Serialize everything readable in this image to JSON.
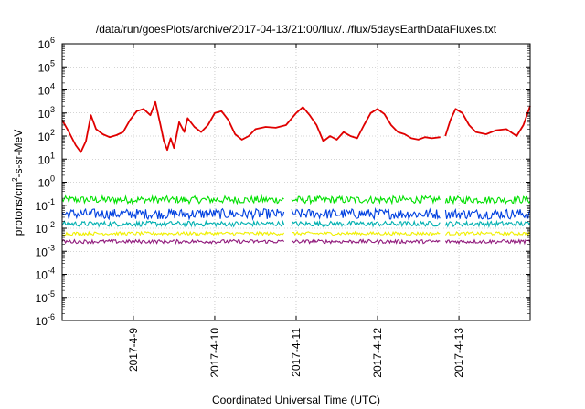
{
  "chart_data": {
    "type": "line",
    "title": "/data/run/goesPlots/archive/2017-04-13/21:00/flux/../flux/5daysEarthDataFluxes.txt",
    "xlabel": "Coordinated Universal Time (UTC)",
    "ylabel_prefix": "protons/cm",
    "ylabel_sup": "2",
    "ylabel_suffix": "-s-sr-MeV",
    "yscale": "log",
    "ylim": [
      1e-06,
      1000000.0
    ],
    "xlim": [
      "2017-04-08 03:00",
      "2017-04-13 21:00"
    ],
    "grid": true,
    "legend": "none",
    "y_ticks": [
      {
        "exp": -6,
        "base": "10",
        "sup": "-6"
      },
      {
        "exp": -5,
        "base": "10",
        "sup": "-5"
      },
      {
        "exp": -4,
        "base": "10",
        "sup": "-4"
      },
      {
        "exp": -3,
        "base": "10",
        "sup": "-3"
      },
      {
        "exp": -2,
        "base": "10",
        "sup": "-2"
      },
      {
        "exp": -1,
        "base": "10",
        "sup": "-1"
      },
      {
        "exp": 0,
        "base": "10",
        "sup": "0"
      },
      {
        "exp": 1,
        "base": "10",
        "sup": "1"
      },
      {
        "exp": 2,
        "base": "10",
        "sup": "2"
      },
      {
        "exp": 3,
        "base": "10",
        "sup": "3"
      },
      {
        "exp": 4,
        "base": "10",
        "sup": "4"
      },
      {
        "exp": 5,
        "base": "10",
        "sup": "5"
      },
      {
        "exp": 6,
        "base": "10",
        "sup": "6"
      }
    ],
    "x_ticks": [
      {
        "value": "2017-04-09 00:00",
        "label": "2017-4-9"
      },
      {
        "value": "2017-04-10 00:00",
        "label": "2017-4-10"
      },
      {
        "value": "2017-04-11 00:00",
        "label": "2017-4-11"
      },
      {
        "value": "2017-04-12 00:00",
        "label": "2017-4-12"
      },
      {
        "value": "2017-04-13 00:00",
        "label": "2017-4-13"
      }
    ],
    "series": [
      {
        "color": "#e00000",
        "gaps": [
          [
            "2017-04-12 18:30",
            "2017-04-12 20:00"
          ]
        ],
        "points": [
          [
            "2017-04-08 03:00",
            500
          ],
          [
            "2017-04-08 05:00",
            150
          ],
          [
            "2017-04-08 07:00",
            40
          ],
          [
            "2017-04-08 08:30",
            20
          ],
          [
            "2017-04-08 10:00",
            60
          ],
          [
            "2017-04-08 11:30",
            800
          ],
          [
            "2017-04-08 13:00",
            200
          ],
          [
            "2017-04-08 15:00",
            120
          ],
          [
            "2017-04-08 17:00",
            90
          ],
          [
            "2017-04-08 19:00",
            110
          ],
          [
            "2017-04-08 21:00",
            150
          ],
          [
            "2017-04-08 23:00",
            500
          ],
          [
            "2017-04-09 01:00",
            1200
          ],
          [
            "2017-04-09 03:00",
            1500
          ],
          [
            "2017-04-09 05:00",
            800
          ],
          [
            "2017-04-09 06:30",
            3000
          ],
          [
            "2017-04-09 08:00",
            300
          ],
          [
            "2017-04-09 09:00",
            60
          ],
          [
            "2017-04-09 10:00",
            25
          ],
          [
            "2017-04-09 11:00",
            80
          ],
          [
            "2017-04-09 12:00",
            30
          ],
          [
            "2017-04-09 13:30",
            400
          ],
          [
            "2017-04-09 15:00",
            150
          ],
          [
            "2017-04-09 16:00",
            600
          ],
          [
            "2017-04-09 18:00",
            250
          ],
          [
            "2017-04-09 20:00",
            150
          ],
          [
            "2017-04-09 22:00",
            300
          ],
          [
            "2017-04-10 00:00",
            1000
          ],
          [
            "2017-04-10 02:00",
            1200
          ],
          [
            "2017-04-10 04:00",
            500
          ],
          [
            "2017-04-10 06:00",
            120
          ],
          [
            "2017-04-10 08:00",
            70
          ],
          [
            "2017-04-10 10:00",
            100
          ],
          [
            "2017-04-10 12:00",
            200
          ],
          [
            "2017-04-10 15:00",
            250
          ],
          [
            "2017-04-10 18:00",
            230
          ],
          [
            "2017-04-10 21:00",
            300
          ],
          [
            "2017-04-11 00:00",
            1000
          ],
          [
            "2017-04-11 02:00",
            1800
          ],
          [
            "2017-04-11 04:00",
            800
          ],
          [
            "2017-04-11 06:00",
            300
          ],
          [
            "2017-04-11 08:00",
            60
          ],
          [
            "2017-04-11 10:00",
            100
          ],
          [
            "2017-04-11 12:00",
            70
          ],
          [
            "2017-04-11 14:00",
            150
          ],
          [
            "2017-04-11 16:00",
            100
          ],
          [
            "2017-04-11 18:00",
            80
          ],
          [
            "2017-04-11 20:00",
            300
          ],
          [
            "2017-04-11 22:00",
            1000
          ],
          [
            "2017-04-12 00:00",
            1500
          ],
          [
            "2017-04-12 02:00",
            900
          ],
          [
            "2017-04-12 04:00",
            300
          ],
          [
            "2017-04-12 06:00",
            150
          ],
          [
            "2017-04-12 08:00",
            120
          ],
          [
            "2017-04-12 10:00",
            80
          ],
          [
            "2017-04-12 12:00",
            70
          ],
          [
            "2017-04-12 14:00",
            90
          ],
          [
            "2017-04-12 16:00",
            80
          ],
          [
            "2017-04-12 18:30",
            90
          ],
          [
            "2017-04-12 20:00",
            100
          ],
          [
            "2017-04-12 21:30",
            500
          ],
          [
            "2017-04-12 23:00",
            1500
          ],
          [
            "2017-04-13 01:00",
            1000
          ],
          [
            "2017-04-13 03:00",
            300
          ],
          [
            "2017-04-13 05:00",
            150
          ],
          [
            "2017-04-13 08:00",
            120
          ],
          [
            "2017-04-13 11:00",
            180
          ],
          [
            "2017-04-13 14:00",
            200
          ],
          [
            "2017-04-13 17:00",
            100
          ],
          [
            "2017-04-13 19:00",
            300
          ],
          [
            "2017-04-13 21:00",
            2000
          ]
        ]
      },
      {
        "color": "#00e000",
        "band": [
          0.12,
          0.25
        ],
        "gaps": [
          [
            "2017-04-10 20:30",
            "2017-04-10 22:30"
          ],
          [
            "2017-04-12 18:30",
            "2017-04-12 20:00"
          ]
        ]
      },
      {
        "color": "#0040e0",
        "band": [
          0.025,
          0.07
        ],
        "gaps": [
          [
            "2017-04-10 20:30",
            "2017-04-10 22:30"
          ],
          [
            "2017-04-12 18:30",
            "2017-04-12 20:00"
          ]
        ]
      },
      {
        "color": "#00b0b0",
        "band": [
          0.012,
          0.02
        ],
        "gaps": [
          [
            "2017-04-10 20:30",
            "2017-04-10 22:30"
          ],
          [
            "2017-04-12 18:30",
            "2017-04-12 20:00"
          ]
        ]
      },
      {
        "color": "#f0f000",
        "band": [
          0.005,
          0.007
        ],
        "gaps": [
          [
            "2017-04-10 20:30",
            "2017-04-10 22:30"
          ],
          [
            "2017-04-12 18:30",
            "2017-04-12 20:00"
          ]
        ]
      },
      {
        "color": "#901a7c",
        "band": [
          0.0022,
          0.0032
        ],
        "gaps": [
          [
            "2017-04-10 20:30",
            "2017-04-10 22:30"
          ],
          [
            "2017-04-12 18:30",
            "2017-04-12 20:00"
          ]
        ]
      }
    ]
  }
}
